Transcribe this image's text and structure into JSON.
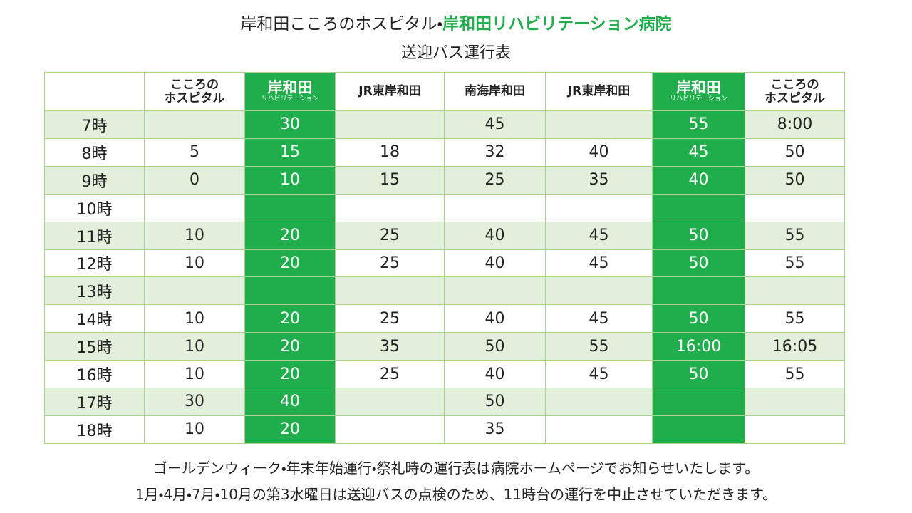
{
  "header": {
    "title_part1": "岸和田こころのホスピタル・",
    "title_part2": "岸和田リハビリテーション病院",
    "subtitle": "送迎バス運行表"
  },
  "table": {
    "columns": [
      null,
      {
        "lines": [
          "こころの",
          "ホスピタル"
        ]
      },
      {
        "main": "岸和田",
        "sub": "リハビリテーション"
      },
      {
        "lines": [
          "JR東岸和田"
        ]
      },
      {
        "lines": [
          "南海岸和田"
        ]
      },
      {
        "lines": [
          "JR東岸和田"
        ]
      },
      {
        "main": "岸和田",
        "sub": "リハビリテーション"
      },
      {
        "lines": [
          "こころの",
          "ホスピタル"
        ]
      }
    ],
    "rows": [
      [
        "7時",
        null,
        "30",
        null,
        "45",
        null,
        "55",
        "8:00"
      ],
      [
        "8時",
        "5",
        "15",
        "18",
        "32",
        "40",
        "45",
        "50"
      ],
      [
        "9時",
        "0",
        "10",
        "15",
        "25",
        "35",
        "40",
        "50"
      ],
      [
        "10時",
        null,
        null,
        null,
        null,
        null,
        null,
        null
      ],
      [
        "11時",
        "10",
        "20",
        "25",
        "40",
        "45",
        "50",
        "55"
      ],
      [
        "12時",
        "10",
        "20",
        "25",
        "40",
        "45",
        "50",
        "55"
      ],
      [
        "13時",
        null,
        null,
        null,
        null,
        null,
        null,
        null
      ],
      [
        "14時",
        "10",
        "20",
        "25",
        "40",
        "45",
        "50",
        "55"
      ],
      [
        "15時",
        "10",
        "20",
        "35",
        "50",
        "55",
        "16:00",
        "16:05"
      ],
      [
        "16時",
        "10",
        "20",
        "25",
        "40",
        "45",
        "50",
        "55"
      ],
      [
        "17時",
        "30",
        "40",
        null,
        "50",
        null,
        null,
        null
      ],
      [
        "18時",
        "10",
        "20",
        null,
        "35",
        null,
        null,
        null
      ]
    ]
  },
  "footer": {
    "line1": "ゴールデンウィーク・年末年始運行・祭礼時の運行表は病院ホームページでお知らせいたします。",
    "line2": "1月・4月・7月・10月の第3水曜日は送迎バスの点検のため、11時台の運行を中止させていただきます。"
  }
}
